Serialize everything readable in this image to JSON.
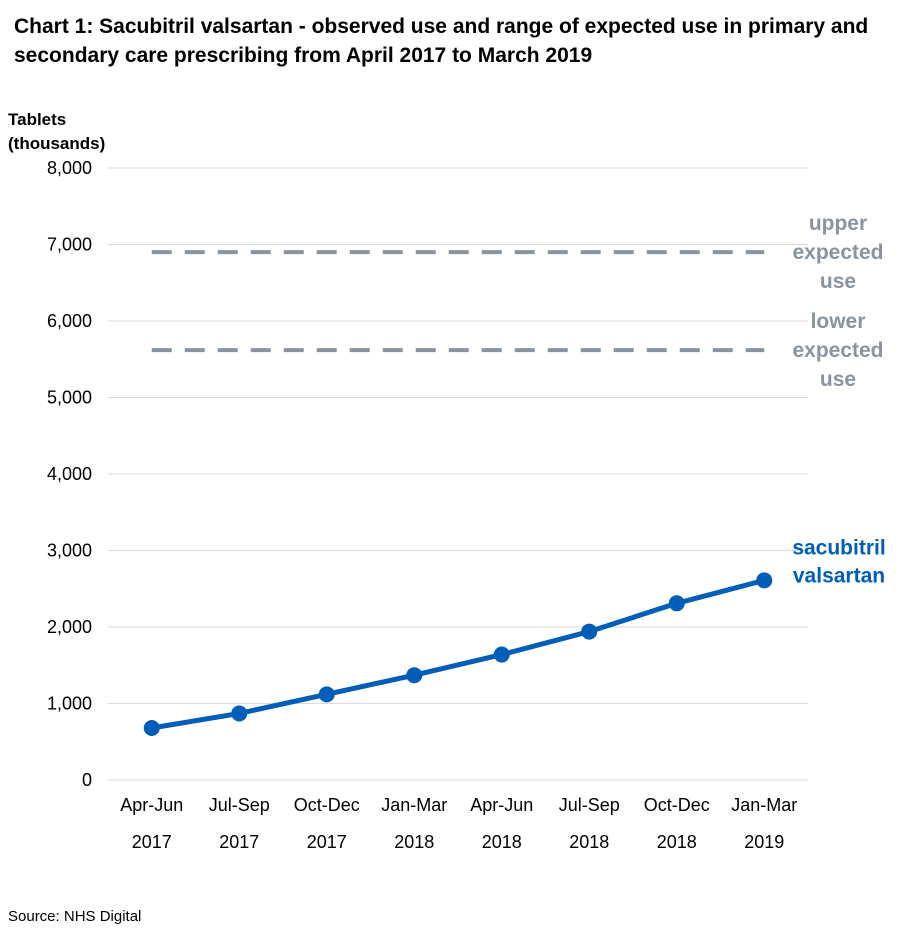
{
  "page": {
    "source": "Source: NHS Digital"
  },
  "chart_data": {
    "type": "line",
    "title": "Chart 1: Sacubitril valsartan - observed use and range of expected use in primary and secondary care prescribing from April 2017 to March 2019",
    "ylabel_lines": [
      "Tablets",
      "(thousands)"
    ],
    "xlabel": "",
    "ylim": [
      0,
      8000
    ],
    "yticks": [
      0,
      1000,
      2000,
      3000,
      4000,
      5000,
      6000,
      7000,
      8000
    ],
    "ytick_labels": [
      "0",
      "1,000",
      "2,000",
      "3,000",
      "4,000",
      "5,000",
      "6,000",
      "7,000",
      "8,000"
    ],
    "categories": [
      {
        "line1": "Apr-Jun",
        "line2": "2017"
      },
      {
        "line1": "Jul-Sep",
        "line2": "2017"
      },
      {
        "line1": "Oct-Dec",
        "line2": "2017"
      },
      {
        "line1": "Jan-Mar",
        "line2": "2018"
      },
      {
        "line1": "Apr-Jun",
        "line2": "2018"
      },
      {
        "line1": "Jul-Sep",
        "line2": "2018"
      },
      {
        "line1": "Oct-Dec",
        "line2": "2018"
      },
      {
        "line1": "Jan-Mar",
        "line2": "2019"
      }
    ],
    "grid": true,
    "series": [
      {
        "label_lines": [
          "sacubitril",
          "valsartan"
        ],
        "color": "#005EB8",
        "style": "solid-with-markers",
        "values": [
          680,
          870,
          1120,
          1370,
          1640,
          1940,
          2310,
          2610
        ]
      }
    ],
    "reference_lines": [
      {
        "label_lines": [
          "upper",
          "expected",
          "use"
        ],
        "color": "#8A939E",
        "style": "dashed",
        "value": 6900
      },
      {
        "label_lines": [
          "lower",
          "expected",
          "use"
        ],
        "color": "#8A939E",
        "style": "dashed",
        "value": 5620
      }
    ]
  }
}
